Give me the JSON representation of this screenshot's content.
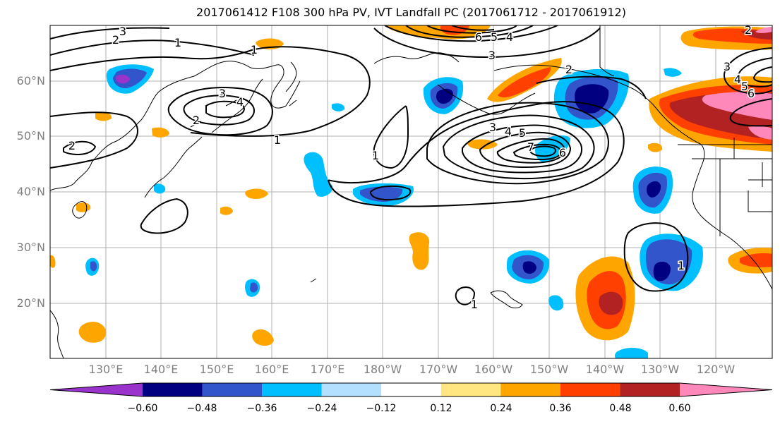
{
  "title": "2017061412 F108 300 hPa PV, IVT Landfall PC (2017061712 - 2017061912)",
  "map": {
    "lat_labels": [
      "60°N",
      "50°N",
      "40°N",
      "30°N",
      "20°N"
    ],
    "lon_labels": [
      "130°E",
      "140°E",
      "150°E",
      "160°E",
      "170°E",
      "180°W",
      "170°W",
      "160°W",
      "150°W",
      "140°W",
      "130°W",
      "120°W"
    ],
    "contour_labels": [
      "3",
      "2",
      "1",
      "1",
      "3",
      "4",
      "2",
      "2",
      "1",
      "1",
      "2",
      "3",
      "4",
      "5",
      "7",
      "6",
      "6",
      "5",
      "4",
      "3",
      "2",
      "3",
      "4",
      "5",
      "6",
      "1",
      "1"
    ]
  },
  "colorbar": {
    "ticks": [
      "−0.60",
      "−0.48",
      "−0.36",
      "−0.24",
      "−0.12",
      "0.12",
      "0.24",
      "0.36",
      "0.48",
      "0.60"
    ],
    "colors": [
      "#9933cc",
      "#000080",
      "#3355cc",
      "#00bfff",
      "#b3e0ff",
      "#ffffff",
      "#ffe680",
      "#ffa500",
      "#ff4000",
      "#b22222",
      "#ff88bb"
    ]
  }
}
